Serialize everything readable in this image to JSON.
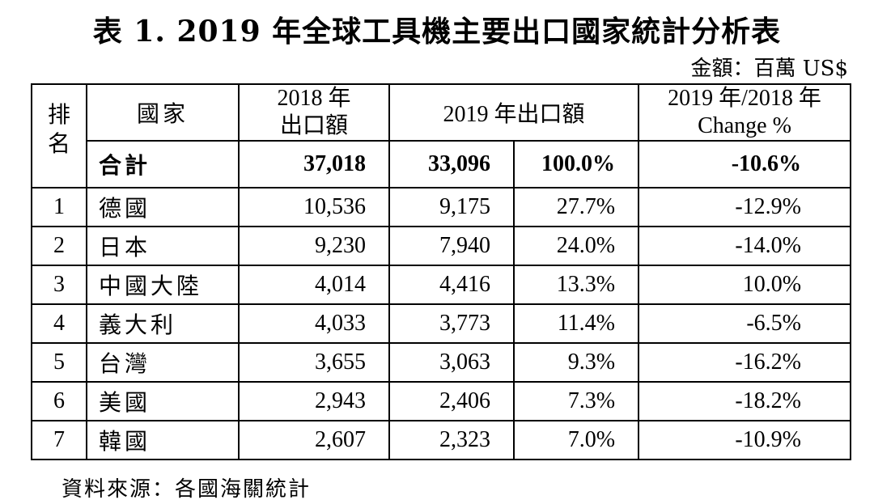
{
  "title": "表 1. 2019 年全球工具機主要出口國家統計分析表",
  "unit": "金額：百萬 US$",
  "headers": {
    "rank_line1": "排",
    "rank_line2": "名",
    "country": "國家",
    "export_2018_line1": "2018 年",
    "export_2018_line2": "出口額",
    "export_2019": "2019 年出口額",
    "change_line1": "2019 年/2018 年",
    "change_line2": "Change %"
  },
  "total": {
    "label": "合計",
    "export_2018": "37,018",
    "export_2019": "33,096",
    "share": "100.0%",
    "change": "-10.6%"
  },
  "rows": [
    {
      "rank": "1",
      "country": "德國",
      "export_2018": "10,536",
      "export_2019": "9,175",
      "share": "27.7%",
      "change": "-12.9%"
    },
    {
      "rank": "2",
      "country": "日本",
      "export_2018": "9,230",
      "export_2019": "7,940",
      "share": "24.0%",
      "change": "-14.0%"
    },
    {
      "rank": "3",
      "country": "中國大陸",
      "export_2018": "4,014",
      "export_2019": "4,416",
      "share": "13.3%",
      "change": "10.0%"
    },
    {
      "rank": "4",
      "country": "義大利",
      "export_2018": "4,033",
      "export_2019": "3,773",
      "share": "11.4%",
      "change": "-6.5%"
    },
    {
      "rank": "5",
      "country": "台灣",
      "export_2018": "3,655",
      "export_2019": "3,063",
      "share": "9.3%",
      "change": "-16.2%"
    },
    {
      "rank": "6",
      "country": "美國",
      "export_2018": "2,943",
      "export_2019": "2,406",
      "share": "7.3%",
      "change": "-18.2%"
    },
    {
      "rank": "7",
      "country": "韓國",
      "export_2018": "2,607",
      "export_2019": "2,323",
      "share": "7.0%",
      "change": "-10.9%"
    }
  ],
  "source": "資料來源：各國海關統計"
}
